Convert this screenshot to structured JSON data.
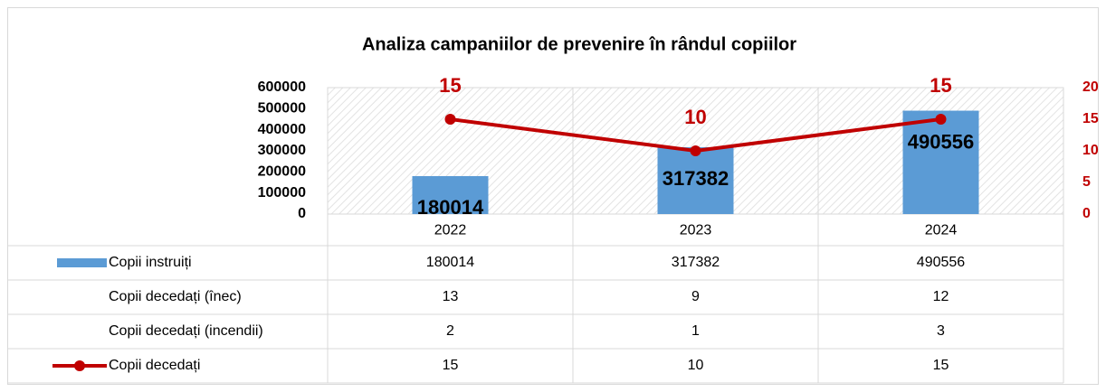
{
  "chart_data": {
    "type": "bar",
    "title": "Analiza campaniilor de prevenire în rândul copiilor",
    "categories": [
      "2022",
      "2023",
      "2024"
    ],
    "series": [
      {
        "name": "Copii instruiți",
        "type": "bar",
        "color": "#5b9bd5",
        "values": [
          180014,
          317382,
          490556
        ]
      },
      {
        "name": "Copii decedați (înec)",
        "values": [
          13,
          9,
          12
        ]
      },
      {
        "name": "Copii decedați (incendii)",
        "values": [
          2,
          1,
          3
        ]
      },
      {
        "name": "Copii decedați",
        "type": "line",
        "axis": "y2",
        "color": "#c00000",
        "values": [
          15,
          10,
          15
        ]
      }
    ],
    "ylim": [
      0,
      600000
    ],
    "yticks": [
      0,
      100000,
      200000,
      300000,
      400000,
      500000,
      600000
    ],
    "y2lim": [
      0,
      20
    ],
    "y2ticks": [
      0,
      5,
      10,
      15,
      20
    ],
    "data_table": true
  }
}
